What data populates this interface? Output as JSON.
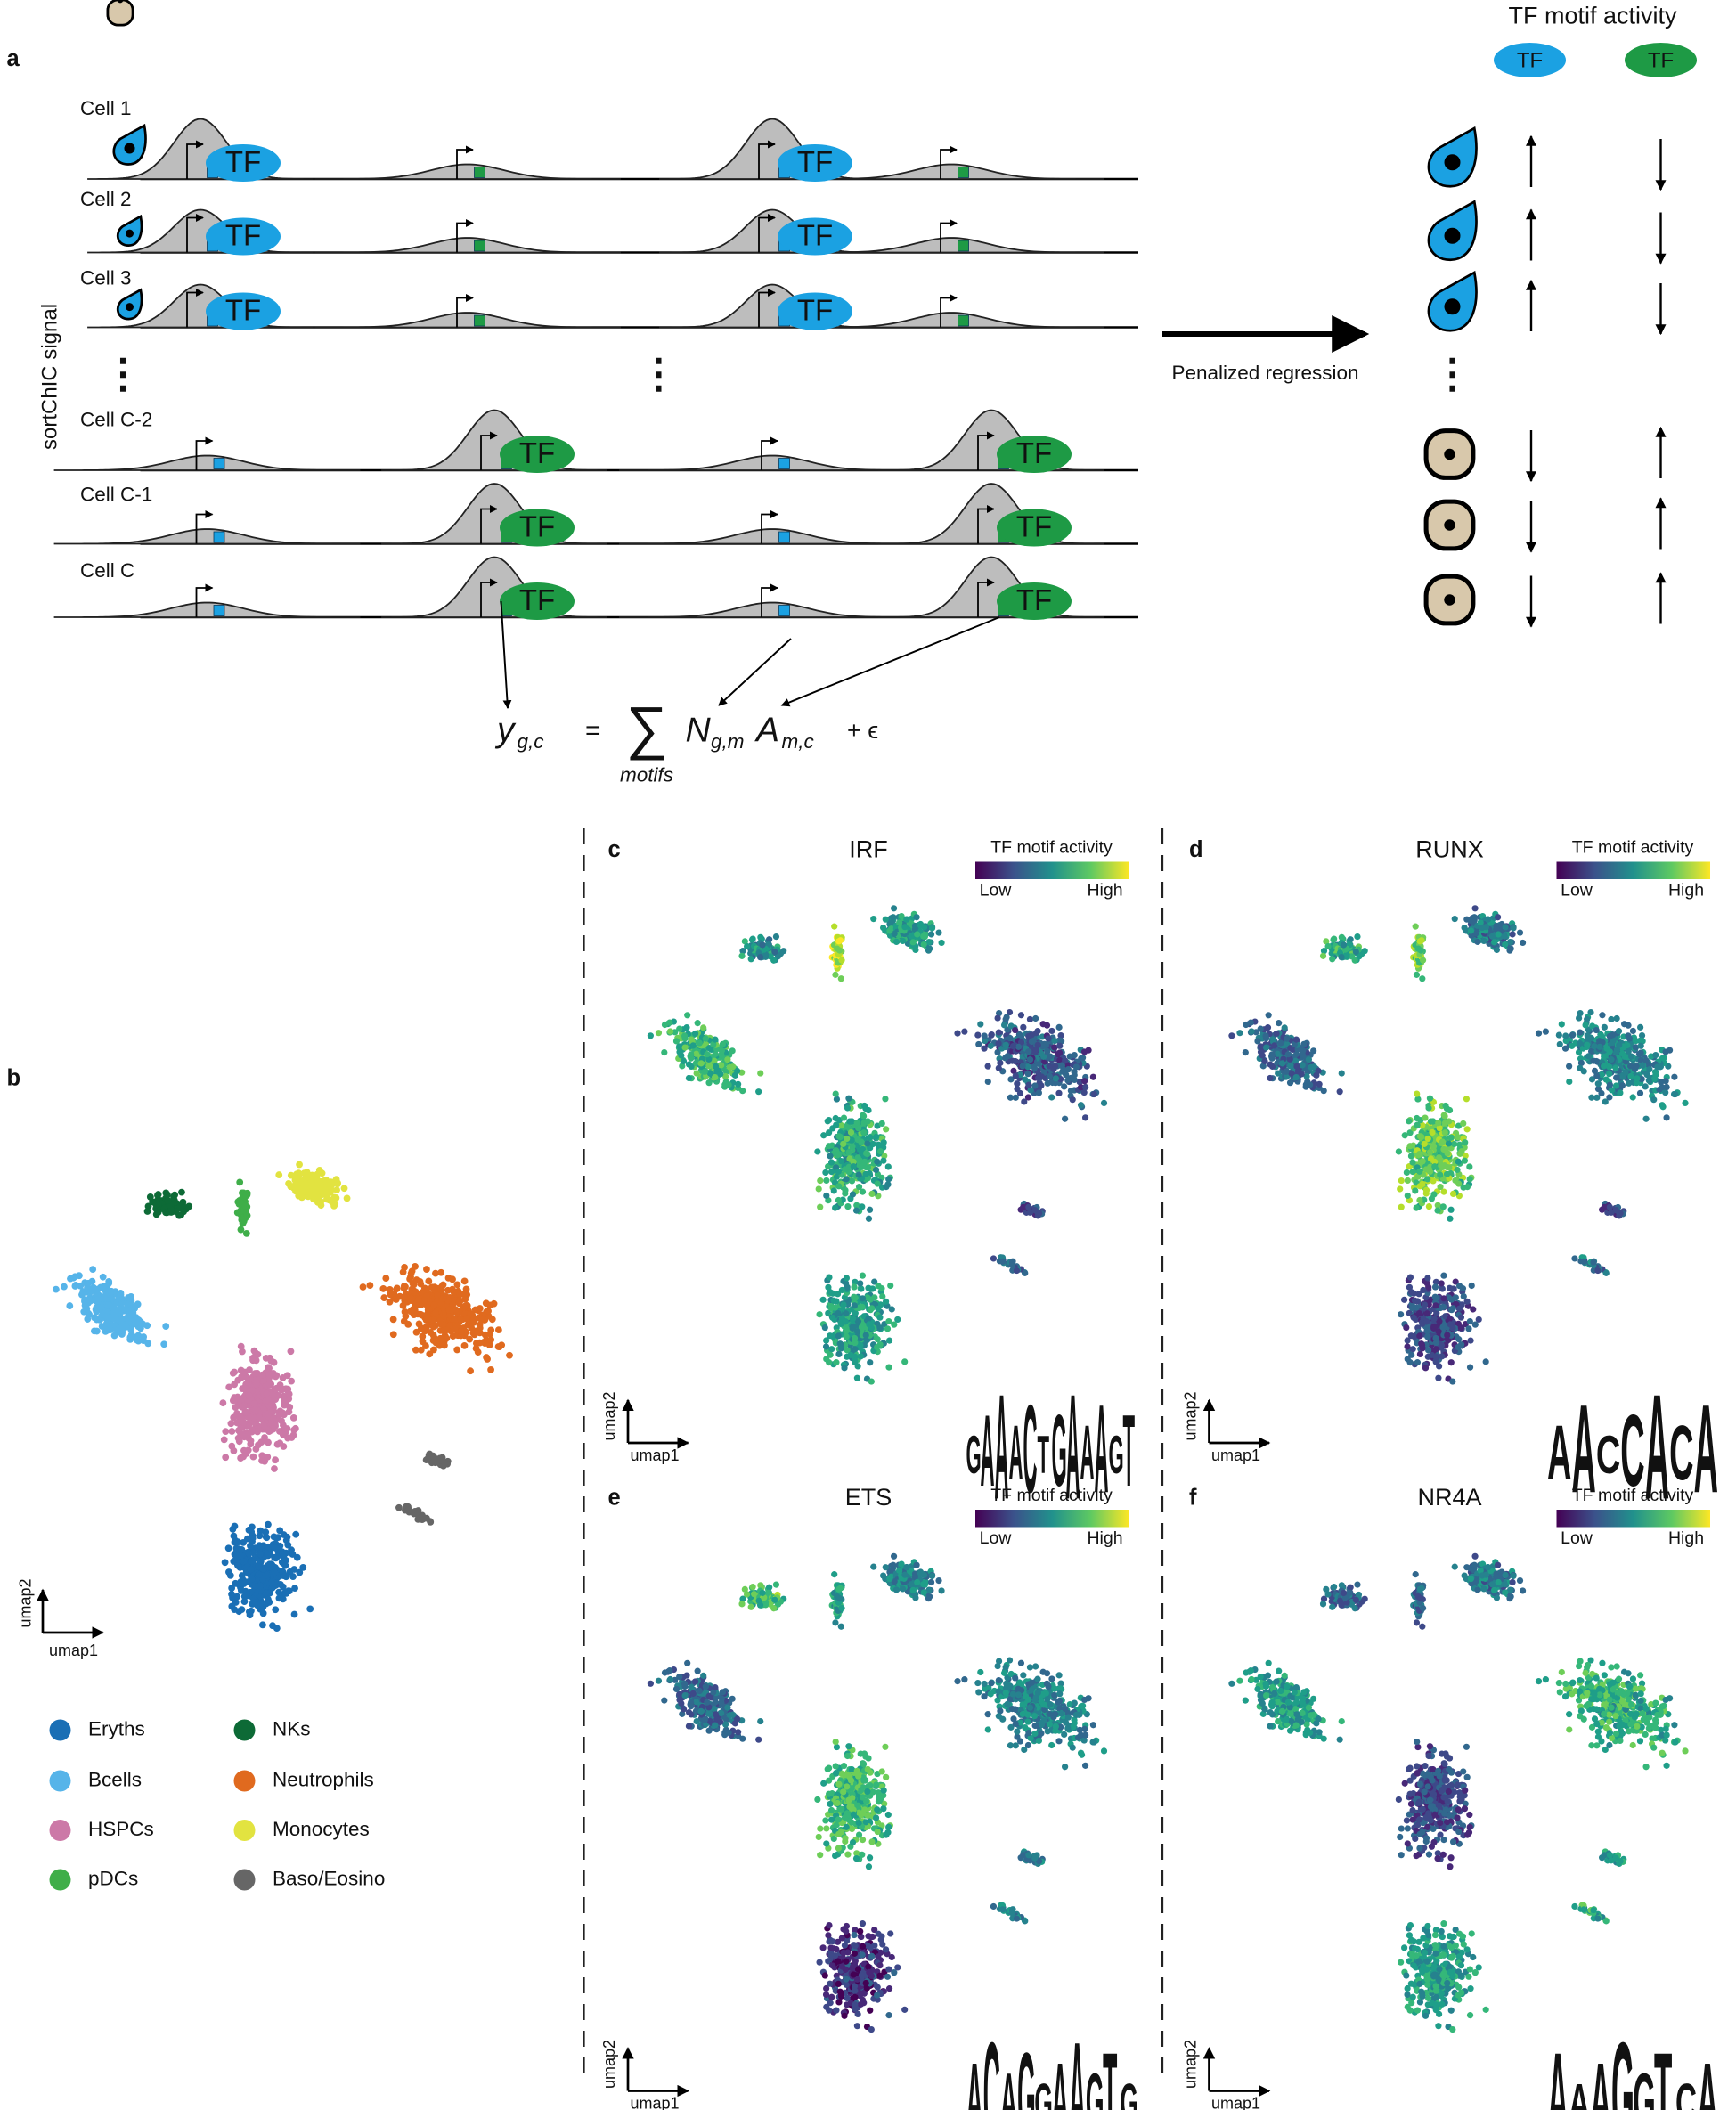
{
  "panel_a": {
    "label": "a",
    "header": "TF motif activity",
    "tf": "TF",
    "cells": [
      "Cell 1",
      "Cell 2",
      "Cell 3",
      "Cell C-2",
      "Cell C-1",
      "Cell C"
    ],
    "y_axis": "sortChIC signal",
    "ellipsis": "⋮",
    "arrow_label": "Penalized regression",
    "equation": {
      "lhs": "y",
      "lhs_sub": "g,c",
      "eq": "=",
      "sum": "∑",
      "sum_sub": "motifs",
      "n": "N",
      "n_sub": "g,m",
      "a": "A",
      "a_sub": "m,c",
      "err": "+ ϵ"
    }
  },
  "panel_b": {
    "label": "b",
    "x_axis": "umap1",
    "y_axis": "umap2",
    "legend": [
      {
        "name": "Eryths",
        "color": "#1a6fb5"
      },
      {
        "name": "Bcells",
        "color": "#56b4e9"
      },
      {
        "name": "HSPCs",
        "color": "#cc79a7"
      },
      {
        "name": "pDCs",
        "color": "#3fae49"
      },
      {
        "name": "NKs",
        "color": "#0d6a36"
      },
      {
        "name": "Neutrophils",
        "color": "#e06a1f"
      },
      {
        "name": "Monocytes",
        "color": "#e2e340"
      },
      {
        "name": "Baso/Eosino",
        "color": "#666666"
      }
    ]
  },
  "colorbar": {
    "title": "TF motif activity",
    "low": "Low",
    "high": "High"
  },
  "motif_panels": [
    {
      "label": "c",
      "title": "IRF",
      "logo": [
        "G",
        "A",
        "A",
        "A",
        "C",
        "T",
        "G",
        "A",
        "A",
        "A",
        "G",
        "T"
      ]
    },
    {
      "label": "d",
      "title": "RUNX",
      "logo": [
        "A",
        "A",
        "C",
        "C",
        "A",
        "C",
        "A"
      ]
    },
    {
      "label": "e",
      "title": "ETS",
      "logo": [
        "A",
        "C",
        "A",
        "G",
        "G",
        "A",
        "A",
        "G",
        "T",
        "G"
      ]
    },
    {
      "label": "f",
      "title": "NR4A",
      "logo": [
        "A",
        "A",
        "A",
        "G",
        "G",
        "T",
        "C",
        "A"
      ]
    }
  ],
  "umap_axes": {
    "x": "umap1",
    "y": "umap2"
  }
}
